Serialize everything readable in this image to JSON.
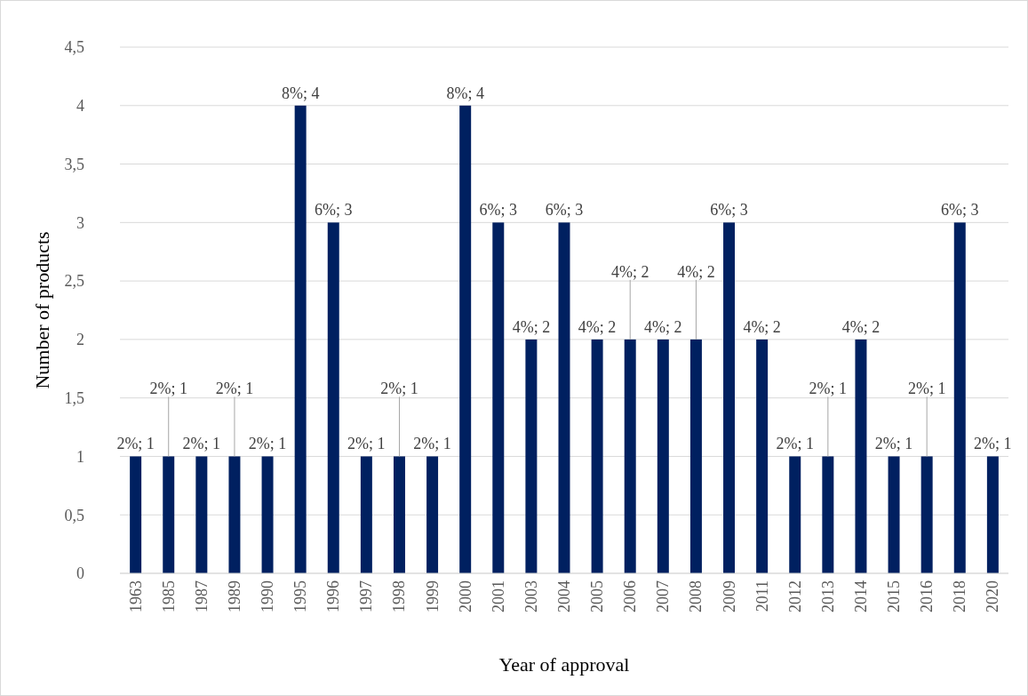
{
  "chart_data": {
    "type": "bar",
    "xlabel": "Year of approval",
    "ylabel": "Number of products",
    "categories": [
      "1963",
      "1985",
      "1987",
      "1989",
      "1990",
      "1995",
      "1996",
      "1997",
      "1998",
      "1999",
      "2000",
      "2001",
      "2003",
      "2004",
      "2005",
      "2006",
      "2007",
      "2008",
      "2009",
      "2011",
      "2012",
      "2013",
      "2014",
      "2015",
      "2016",
      "2018",
      "2020"
    ],
    "values": [
      1,
      1,
      1,
      1,
      1,
      4,
      3,
      1,
      1,
      1,
      4,
      3,
      2,
      3,
      2,
      2,
      2,
      2,
      3,
      2,
      1,
      1,
      2,
      1,
      1,
      3,
      1
    ],
    "value_labels": [
      "2%; 1",
      "2%; 1",
      "2%; 1",
      "2%; 1",
      "2%; 1",
      "8%; 4",
      "6%; 3",
      "2%; 1",
      "2%; 1",
      "2%; 1",
      "8%; 4",
      "6%; 3",
      "4%; 2",
      "6%; 3",
      "4%; 2",
      "4%; 2",
      "4%; 2",
      "4%; 2",
      "6%; 3",
      "4%; 2",
      "2%; 1",
      "2%; 1",
      "4%; 2",
      "2%; 1",
      "2%; 1",
      "6%; 3",
      "2%; 1"
    ],
    "color": "#002060",
    "ylim": [
      0,
      4.5
    ],
    "yticks": [
      0,
      {
        "value": 0.5,
        "label": "0,5"
      },
      1,
      {
        "value": 1.5,
        "label": "1,5"
      },
      2,
      {
        "value": 2.5,
        "label": "2,5"
      },
      3,
      {
        "value": 3.5,
        "label": "3,5"
      },
      4,
      {
        "value": 4.5,
        "label": "4,5"
      }
    ],
    "grid": "y"
  }
}
